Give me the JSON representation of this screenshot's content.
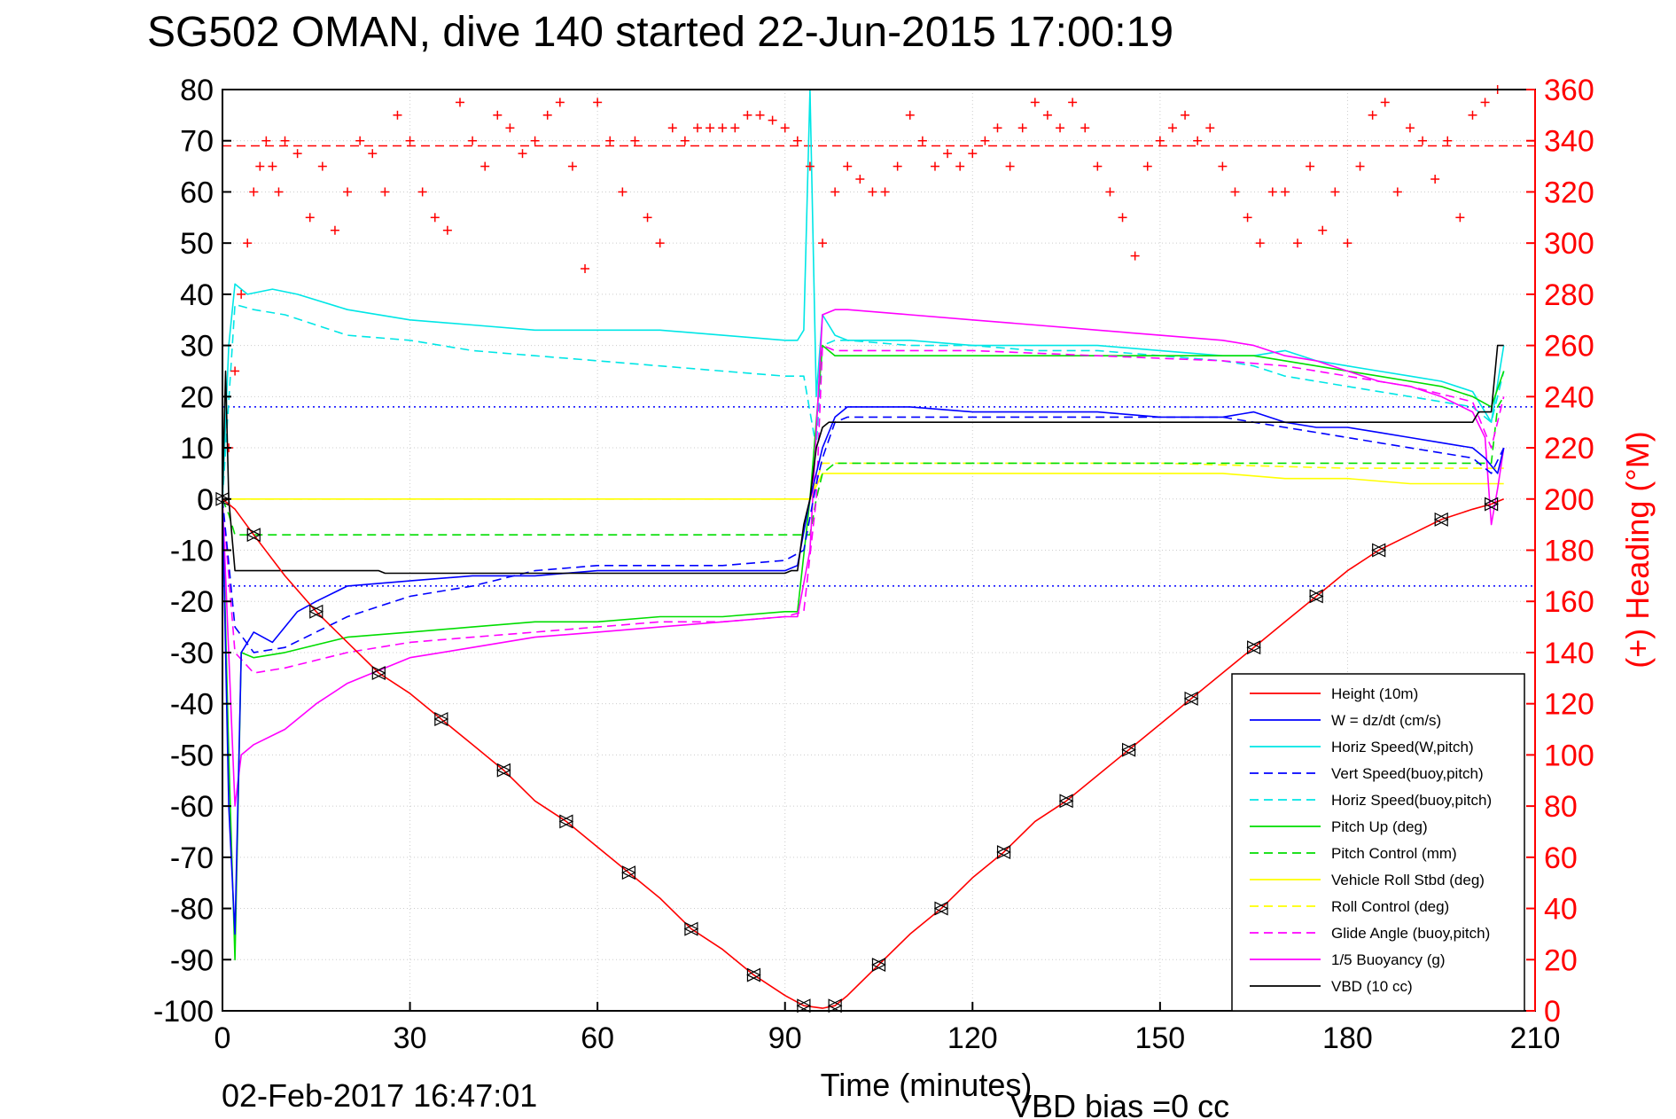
{
  "chart_data": {
    "type": "line",
    "title": "SG502 OMAN, dive 140 started 22-Jun-2015 17:00:19",
    "xlabel": "Time (minutes)",
    "ylabel_right": "(+) Heading (°M)",
    "xlim": [
      0,
      210
    ],
    "ylim": [
      -100,
      80
    ],
    "ylim_right": [
      0,
      360
    ],
    "xticks": [
      "0",
      "30",
      "60",
      "90",
      "120",
      "150",
      "180",
      "210"
    ],
    "yticks": [
      "80",
      "70",
      "60",
      "50",
      "40",
      "30",
      "20",
      "10",
      "0",
      "-10",
      "-20",
      "-30",
      "-40",
      "-50",
      "-60",
      "-70",
      "-80",
      "-90",
      "-100"
    ],
    "yticks_right": [
      "360",
      "340",
      "320",
      "300",
      "280",
      "260",
      "240",
      "220",
      "200",
      "180",
      "160",
      "140",
      "120",
      "100",
      "80",
      "60",
      "40",
      "20",
      "0"
    ],
    "footer_date": "02-Feb-2017 16:47:01",
    "footer_bias": "VBD bias =0 cc",
    "legend_position": "lower-right",
    "reference_lines": [
      {
        "axis": "right",
        "value": 338,
        "color": "#ff0000",
        "style": "dashed"
      },
      {
        "axis": "left",
        "value": 18,
        "color": "#0000ff",
        "style": "dotted"
      },
      {
        "axis": "left",
        "value": -17,
        "color": "#0000ff",
        "style": "dotted"
      }
    ],
    "series": [
      {
        "name": "Height (10m)",
        "color": "#ff0000",
        "style": "solid",
        "x": [
          0,
          2,
          5,
          10,
          15,
          20,
          25,
          30,
          35,
          40,
          45,
          50,
          55,
          60,
          65,
          70,
          75,
          80,
          85,
          90,
          93,
          96,
          98,
          100,
          105,
          110,
          115,
          120,
          125,
          130,
          135,
          140,
          145,
          150,
          155,
          160,
          165,
          170,
          175,
          180,
          185,
          190,
          195,
          200,
          203,
          205
        ],
        "y": [
          0,
          -2,
          -7,
          -15,
          -22,
          -28,
          -34,
          -38,
          -43,
          -48,
          -53,
          -59,
          -63,
          -68,
          -73,
          -78,
          -84,
          -88,
          -93,
          -97,
          -99,
          -99.5,
          -99,
          -97,
          -91,
          -85,
          -80,
          -74,
          -69,
          -63,
          -59,
          -54,
          -49,
          -44,
          -39,
          -34,
          -29,
          -24,
          -19,
          -14,
          -10,
          -7,
          -4,
          -2,
          -1,
          0
        ]
      },
      {
        "name": "W = dz/dt (cm/s)",
        "color": "#0000ff",
        "style": "solid",
        "x": [
          0,
          1,
          2,
          3,
          5,
          8,
          12,
          15,
          20,
          30,
          40,
          50,
          60,
          70,
          80,
          90,
          92,
          94,
          95,
          96,
          98,
          100,
          110,
          120,
          130,
          140,
          150,
          160,
          165,
          170,
          175,
          180,
          185,
          190,
          195,
          200,
          202,
          204,
          205
        ],
        "y": [
          0,
          -60,
          -85,
          -30,
          -26,
          -28,
          -22,
          -20,
          -17,
          -16,
          -15,
          -15,
          -14,
          -14,
          -14,
          -14,
          -13,
          0,
          5,
          10,
          16,
          18,
          18,
          17,
          17,
          17,
          16,
          16,
          17,
          15,
          14,
          14,
          13,
          12,
          11,
          10,
          8,
          5,
          10
        ]
      },
      {
        "name": "Horiz Speed(W,pitch)",
        "color": "#00e6e6",
        "style": "solid",
        "x": [
          0,
          1,
          2,
          4,
          8,
          12,
          20,
          30,
          40,
          50,
          60,
          70,
          80,
          90,
          92,
          93,
          94,
          95,
          96,
          98,
          100,
          110,
          120,
          130,
          140,
          150,
          160,
          165,
          170,
          175,
          180,
          185,
          190,
          195,
          200,
          203,
          205
        ],
        "y": [
          0,
          30,
          42,
          40,
          41,
          40,
          37,
          35,
          34,
          33,
          33,
          33,
          32,
          31,
          31,
          33,
          80,
          20,
          36,
          32,
          31,
          31,
          30,
          30,
          30,
          29,
          28,
          28,
          29,
          27,
          26,
          25,
          24,
          23,
          21,
          15,
          30
        ]
      },
      {
        "name": "Vert Speed(buoy,pitch)",
        "color": "#0000ff",
        "style": "dashed",
        "x": [
          0,
          2,
          5,
          10,
          20,
          30,
          40,
          50,
          60,
          70,
          80,
          90,
          93,
          95,
          96,
          98,
          100,
          110,
          120,
          130,
          140,
          150,
          160,
          165,
          170,
          175,
          180,
          185,
          190,
          195,
          200,
          203,
          205
        ],
        "y": [
          0,
          -25,
          -30,
          -29,
          -23,
          -19,
          -17,
          -14,
          -13,
          -13,
          -13,
          -12,
          -10,
          3,
          8,
          15,
          16,
          16,
          16,
          16,
          16,
          16,
          16,
          15,
          14,
          13,
          12,
          11,
          10,
          9,
          8,
          5,
          10
        ]
      },
      {
        "name": "Horiz Speed(buoy,pitch)",
        "color": "#00e6e6",
        "style": "dashed",
        "x": [
          0,
          2,
          5,
          10,
          20,
          30,
          40,
          50,
          60,
          70,
          80,
          90,
          93,
          95,
          96,
          98,
          100,
          110,
          120,
          130,
          140,
          150,
          160,
          165,
          170,
          175,
          180,
          185,
          190,
          195,
          200,
          203,
          205
        ],
        "y": [
          0,
          38,
          37,
          36,
          32,
          31,
          29,
          28,
          27,
          26,
          25,
          24,
          24,
          10,
          30,
          31,
          31,
          30,
          30,
          29,
          29,
          28,
          27,
          26,
          24,
          23,
          22,
          21,
          20,
          19,
          18,
          15,
          25
        ]
      },
      {
        "name": "Pitch Up (deg)",
        "color": "#00dd00",
        "style": "solid",
        "x": [
          0,
          1,
          2,
          3,
          5,
          10,
          20,
          30,
          40,
          50,
          60,
          70,
          80,
          90,
          92,
          94,
          96,
          98,
          100,
          110,
          120,
          130,
          140,
          150,
          160,
          165,
          170,
          175,
          180,
          185,
          190,
          195,
          200,
          203,
          205
        ],
        "y": [
          0,
          -50,
          -90,
          -30,
          -31,
          -30,
          -27,
          -26,
          -25,
          -24,
          -24,
          -23,
          -23,
          -22,
          -22,
          0,
          30,
          28,
          28,
          28,
          28,
          28,
          28,
          28,
          28,
          28,
          27,
          26,
          25,
          24,
          23,
          22,
          20,
          18,
          25
        ]
      },
      {
        "name": "Pitch Control (mm)",
        "color": "#00dd00",
        "style": "dashed",
        "x": [
          0,
          1,
          2,
          5,
          30,
          60,
          90,
          92,
          94,
          95,
          96,
          98,
          120,
          150,
          180,
          203,
          204,
          205
        ],
        "y": [
          0,
          -3,
          -7,
          -7,
          -7,
          -7,
          -7,
          -7,
          -7,
          0,
          5,
          7,
          7,
          7,
          7,
          7,
          18,
          20
        ]
      },
      {
        "name": "Vehicle Roll Stbd (deg)",
        "color": "#ffff00",
        "style": "solid",
        "x": [
          0,
          3,
          10,
          20,
          30,
          40,
          50,
          60,
          70,
          80,
          90,
          94,
          96,
          100,
          120,
          140,
          160,
          170,
          180,
          190,
          200,
          205
        ],
        "y": [
          0,
          0,
          0,
          0,
          0,
          0,
          0,
          0,
          0,
          0,
          0,
          0,
          5,
          5,
          5,
          5,
          5,
          4,
          4,
          3,
          3,
          3
        ]
      },
      {
        "name": "Roll Control (deg)",
        "color": "#ffff00",
        "style": "dashed",
        "x": [
          0,
          3,
          30,
          60,
          90,
          94,
          96,
          120,
          150,
          180,
          200,
          205
        ],
        "y": [
          0,
          0,
          0,
          0,
          0,
          0,
          7,
          7,
          7,
          6,
          6,
          6
        ]
      },
      {
        "name": "Glide Angle (buoy,pitch)",
        "color": "#ff00ff",
        "style": "dashed",
        "x": [
          0,
          2,
          5,
          10,
          20,
          30,
          40,
          50,
          60,
          70,
          80,
          90,
          93,
          95,
          96,
          98,
          100,
          120,
          140,
          160,
          170,
          180,
          190,
          200,
          203,
          205
        ],
        "y": [
          0,
          -30,
          -34,
          -33,
          -30,
          -28,
          -27,
          -26,
          -25,
          -24,
          -24,
          -23,
          -22,
          0,
          30,
          29,
          29,
          29,
          28,
          27,
          26,
          24,
          22,
          19,
          10,
          20
        ]
      },
      {
        "name": "1/5 Buoyancy (g)",
        "color": "#ff00ff",
        "style": "solid",
        "x": [
          0,
          2,
          3,
          5,
          10,
          15,
          20,
          30,
          40,
          50,
          60,
          70,
          80,
          90,
          92,
          94,
          96,
          98,
          100,
          110,
          120,
          130,
          140,
          150,
          160,
          165,
          170,
          175,
          180,
          185,
          190,
          195,
          200,
          202,
          203,
          204,
          205
        ],
        "y": [
          0,
          -60,
          -50,
          -48,
          -45,
          -40,
          -36,
          -31,
          -29,
          -27,
          -26,
          -25,
          -24,
          -23,
          -23,
          -10,
          36,
          37,
          37,
          36,
          35,
          34,
          33,
          32,
          31,
          30,
          28,
          27,
          25,
          23,
          22,
          20,
          17,
          12,
          -5,
          2,
          10
        ]
      },
      {
        "name": "VBD (10 cc)",
        "color": "#000000",
        "style": "solid",
        "x": [
          0,
          0.5,
          1,
          2,
          25,
          26,
          90,
          91,
          92,
          93,
          94,
          95,
          96,
          97,
          100,
          120,
          150,
          180,
          200,
          201,
          203,
          204,
          205
        ],
        "y": [
          0,
          25,
          0,
          -14,
          -14,
          -14.5,
          -14.5,
          -14,
          -14,
          -5,
          0,
          10,
          14,
          15,
          15,
          15,
          15,
          15,
          15,
          17,
          17,
          30,
          30
        ]
      }
    ],
    "heading": {
      "name": "(+) Heading (°M)",
      "color": "#ff0000",
      "marker": "+",
      "x": [
        1,
        2,
        3,
        4,
        5,
        6,
        7,
        8,
        9,
        10,
        12,
        14,
        16,
        18,
        20,
        22,
        24,
        26,
        28,
        30,
        32,
        34,
        36,
        38,
        40,
        42,
        44,
        46,
        48,
        50,
        52,
        54,
        56,
        58,
        60,
        62,
        64,
        66,
        68,
        70,
        72,
        74,
        76,
        78,
        80,
        82,
        84,
        86,
        88,
        90,
        92,
        94,
        96,
        98,
        100,
        102,
        104,
        106,
        108,
        110,
        112,
        114,
        116,
        118,
        120,
        122,
        124,
        126,
        128,
        130,
        132,
        134,
        136,
        138,
        140,
        142,
        144,
        146,
        148,
        150,
        152,
        154,
        156,
        158,
        160,
        162,
        164,
        166,
        168,
        170,
        172,
        174,
        176,
        178,
        180,
        182,
        184,
        186,
        188,
        190,
        192,
        194,
        196,
        198,
        200,
        202,
        204
      ],
      "y": [
        220,
        250,
        280,
        300,
        320,
        330,
        340,
        330,
        320,
        340,
        335,
        310,
        330,
        305,
        320,
        340,
        335,
        320,
        350,
        340,
        320,
        310,
        305,
        355,
        340,
        330,
        350,
        345,
        335,
        340,
        350,
        355,
        330,
        290,
        355,
        340,
        320,
        340,
        310,
        300,
        345,
        340,
        345,
        345,
        345,
        345,
        350,
        350,
        348,
        345,
        340,
        330,
        300,
        320,
        330,
        325,
        320,
        320,
        330,
        350,
        340,
        330,
        335,
        330,
        335,
        340,
        345,
        330,
        345,
        355,
        350,
        345,
        355,
        345,
        330,
        320,
        310,
        295,
        330,
        340,
        345,
        350,
        340,
        345,
        330,
        320,
        310,
        300,
        320,
        320,
        300,
        330,
        305,
        320,
        300,
        330,
        350,
        355,
        320,
        345,
        340,
        325,
        340,
        310,
        350,
        355,
        360
      ]
    }
  },
  "legend": {
    "items": [
      {
        "label": "Height (10m)",
        "color": "#ff0000",
        "style": "solid"
      },
      {
        "label": "W = dz/dt (cm/s)",
        "color": "#0000ff",
        "style": "solid"
      },
      {
        "label": "Horiz Speed(W,pitch)",
        "color": "#00e6e6",
        "style": "solid"
      },
      {
        "label": "Vert Speed(buoy,pitch)",
        "color": "#0000ff",
        "style": "dashed"
      },
      {
        "label": "Horiz Speed(buoy,pitch)",
        "color": "#00e6e6",
        "style": "dashed"
      },
      {
        "label": "Pitch Up (deg)",
        "color": "#00dd00",
        "style": "solid"
      },
      {
        "label": "Pitch Control (mm)",
        "color": "#00dd00",
        "style": "dashed"
      },
      {
        "label": "Vehicle Roll Stbd (deg)",
        "color": "#ffff00",
        "style": "solid"
      },
      {
        "label": "Roll Control (deg)",
        "color": "#ffff00",
        "style": "dashed"
      },
      {
        "label": "Glide Angle (buoy,pitch)",
        "color": "#ff00ff",
        "style": "dashed"
      },
      {
        "label": "1/5 Buoyancy (g)",
        "color": "#ff00ff",
        "style": "solid"
      },
      {
        "label": "VBD (10 cc)",
        "color": "#000000",
        "style": "solid"
      }
    ]
  }
}
